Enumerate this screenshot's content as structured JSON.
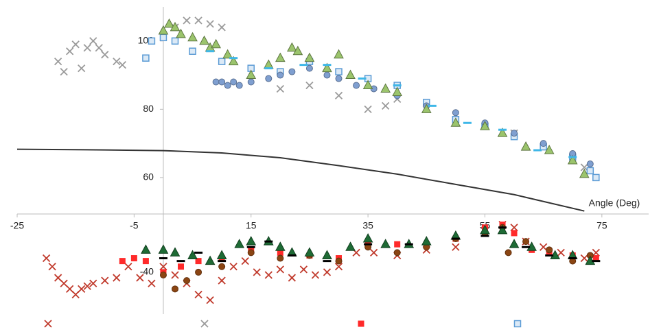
{
  "chart_data": {
    "type": "scatter",
    "x_label": "Angle (Deg)",
    "xlim": [
      -25,
      83
    ],
    "xticks": [
      -25,
      -5,
      15,
      35,
      55,
      75
    ],
    "ylim": [
      20,
      110
    ],
    "yticks": [
      60,
      80,
      100
    ],
    "y2lim": [
      -55,
      55
    ],
    "y2ticks": [
      -40
    ],
    "series": [
      {
        "marker": "x",
        "color": "#c0392b",
        "axis": "y2",
        "x": [
          -20,
          -19,
          -18,
          -17,
          -16,
          -15,
          -14,
          -13,
          -12,
          -10,
          -8,
          -6,
          -4,
          -2,
          0,
          2,
          4,
          6,
          8,
          10,
          12,
          14,
          16,
          18,
          20,
          22,
          24,
          26,
          28,
          30,
          33,
          36,
          40,
          45,
          50,
          55,
          58,
          60,
          62,
          65,
          68,
          72,
          74
        ],
        "values": [
          -35,
          -38,
          -42,
          -44,
          -46,
          -48,
          -46,
          -45,
          -44,
          -43,
          -42,
          -38,
          -42,
          -44,
          -38,
          -41,
          -44,
          -48,
          -50,
          -43,
          -38,
          -36,
          -40,
          -41,
          -39,
          -42,
          -39,
          -41,
          -40,
          -38,
          -33,
          -33,
          -34,
          -32,
          -31,
          -25,
          -23,
          -24,
          -29,
          -31,
          -33,
          -35,
          -33
        ]
      },
      {
        "marker": "x",
        "color": "#9a9a9a",
        "x": [
          -18,
          -17,
          -16,
          -15,
          -14,
          -13,
          -12,
          -11,
          -10,
          -8,
          -7,
          2,
          4,
          6,
          8,
          10,
          20,
          25,
          30,
          35,
          38,
          40,
          45,
          60,
          70,
          72
        ],
        "values": [
          94,
          91,
          97,
          99,
          92,
          98,
          100,
          98,
          96,
          94,
          93,
          104,
          106,
          106,
          105,
          104,
          86,
          87,
          84,
          80,
          81,
          83,
          80,
          73,
          65,
          63
        ]
      },
      {
        "marker": "square",
        "color": "#ff2a2a",
        "axis": "y2",
        "x": [
          -7,
          -5,
          -3,
          0,
          3,
          6,
          10,
          15,
          20,
          25,
          30,
          35,
          40,
          45,
          50,
          55,
          58,
          60,
          63,
          66,
          70,
          74
        ],
        "values": [
          -36,
          -35,
          -36,
          -40,
          -38,
          -36,
          -35,
          -32,
          -33,
          -34,
          -35,
          -30,
          -30,
          -30,
          -28,
          -24,
          -23,
          -26,
          -32,
          -33,
          -34,
          -35
        ]
      },
      {
        "marker": "square-open",
        "color": "#5b9bd5",
        "x": [
          -3,
          -2,
          0,
          2,
          5,
          10,
          15,
          20,
          25,
          30,
          35,
          40,
          45,
          50,
          55,
          60,
          65,
          70,
          73,
          74
        ],
        "values": [
          95,
          100,
          101,
          100,
          97,
          94,
          92,
          91,
          94,
          91,
          89,
          87,
          82,
          77,
          75,
          72,
          69,
          66,
          62,
          60
        ]
      },
      {
        "marker": "circle",
        "color": "#7f9fd0",
        "legend": false,
        "x": [
          9,
          10,
          11,
          12,
          13,
          15,
          18,
          20,
          22,
          25,
          28,
          30,
          33,
          36,
          40,
          45,
          50,
          55,
          60,
          65,
          70,
          73
        ],
        "values": [
          88,
          88,
          87,
          88,
          87,
          88,
          89,
          90,
          91,
          92,
          90,
          89,
          87,
          86,
          84,
          81,
          79,
          76,
          73,
          70,
          67,
          64
        ]
      },
      {
        "marker": "triangle",
        "color": "#9bc46c",
        "legend": false,
        "x": [
          0,
          1,
          2,
          3,
          5,
          7,
          8,
          9,
          11,
          12,
          15,
          18,
          20,
          22,
          23,
          25,
          28,
          30,
          32,
          35,
          38,
          40,
          45,
          50,
          55,
          58,
          62,
          66,
          70,
          72
        ],
        "values": [
          103,
          105,
          104,
          102,
          101,
          100,
          98,
          99,
          96,
          94,
          90,
          93,
          95,
          98,
          97,
          95,
          92,
          96,
          90,
          87,
          86,
          85,
          80,
          76,
          75,
          73,
          69,
          68,
          65,
          61
        ]
      },
      {
        "marker": "dash",
        "color": "#3fb7e8",
        "legend": false,
        "x": [
          8,
          12,
          18,
          24,
          28,
          34,
          40,
          46,
          52,
          58,
          64,
          70
        ],
        "values": [
          97,
          95,
          92,
          93,
          93,
          89,
          87,
          81,
          76,
          74,
          68,
          66
        ]
      },
      {
        "marker": "line",
        "color": "#333333",
        "legend": false,
        "x": [
          -25,
          -10,
          0,
          10,
          20,
          30,
          40,
          50,
          60,
          72
        ],
        "values": [
          68.3,
          68.1,
          67.9,
          67.2,
          65.8,
          63.5,
          61,
          58,
          55,
          50.2
        ]
      },
      {
        "marker": "circle",
        "color": "#8b4513",
        "axis": "y2",
        "legend": false,
        "x": [
          0,
          2,
          4,
          6,
          10,
          15,
          20,
          25,
          30,
          35,
          40,
          45,
          50,
          55,
          58,
          59,
          62,
          66,
          70,
          73
        ],
        "values": [
          -41,
          -46,
          -43,
          -40,
          -38,
          -33,
          -35,
          -34,
          -36,
          -31,
          -33,
          -31,
          -28,
          -26,
          -24,
          -33,
          -29,
          -32,
          -36,
          -34
        ]
      },
      {
        "marker": "triangle",
        "color": "#1e6b35",
        "axis": "y2",
        "legend": false,
        "x": [
          -3,
          0,
          2,
          5,
          8,
          10,
          13,
          15,
          18,
          20,
          22,
          25,
          28,
          32,
          35,
          38,
          42,
          45,
          50,
          55,
          58,
          60,
          63,
          67,
          70,
          73
        ],
        "values": [
          -32,
          -32,
          -33,
          -34,
          -36,
          -34,
          -30,
          -29,
          -29,
          -31,
          -33,
          -33,
          -34,
          -31,
          -28,
          -30,
          -30,
          -29,
          -27,
          -25,
          -25,
          -30,
          -31,
          -34,
          -34,
          -36
        ]
      },
      {
        "marker": "dash",
        "color": "#000000",
        "axis": "y2",
        "legend": false,
        "x": [
          0,
          3,
          6,
          10,
          15,
          18,
          22,
          28,
          35,
          42,
          50,
          55,
          58,
          62,
          66,
          70,
          74
        ],
        "values": [
          -35,
          -36,
          -33,
          -36,
          -31,
          -29,
          -34,
          -36,
          -30,
          -30,
          -28,
          -27,
          -24,
          -31,
          -34,
          -35,
          -36
        ]
      }
    ]
  }
}
